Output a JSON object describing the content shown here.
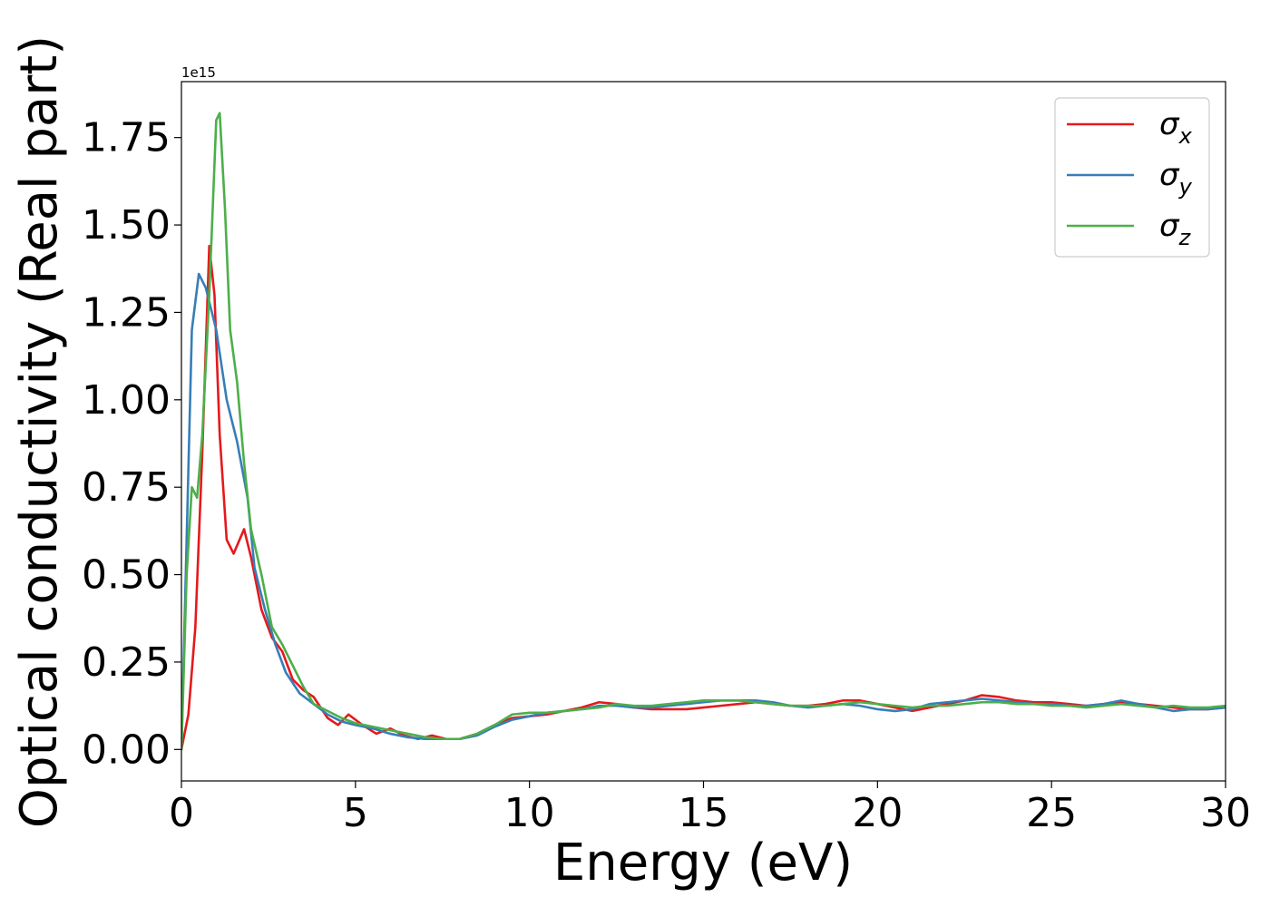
{
  "chart_data": {
    "type": "line",
    "xlabel": "Energy (eV)",
    "ylabel": "Optical conductivity (Real part)",
    "y_offset_label": "1e15",
    "xlim": [
      0,
      30
    ],
    "ylim": [
      -0.09,
      1.91
    ],
    "x_ticks": [
      0,
      5,
      10,
      15,
      20,
      25,
      30
    ],
    "y_ticks": [
      0.0,
      0.25,
      0.5,
      0.75,
      1.0,
      1.25,
      1.5,
      1.75
    ],
    "x_tick_labels": [
      "0",
      "5",
      "10",
      "15",
      "20",
      "25",
      "30"
    ],
    "y_tick_labels": [
      "0.00",
      "0.25",
      "0.50",
      "0.75",
      "1.00",
      "1.25",
      "1.50",
      "1.75"
    ],
    "grid": false,
    "legend_position": "top-right",
    "series": [
      {
        "name": "σx",
        "legend_base": "σ",
        "legend_sub": "x",
        "color": "#e41a1c",
        "points": [
          [
            0,
            0.0
          ],
          [
            0.2,
            0.1
          ],
          [
            0.4,
            0.35
          ],
          [
            0.6,
            0.85
          ],
          [
            0.8,
            1.44
          ],
          [
            0.95,
            1.3
          ],
          [
            1.1,
            0.9
          ],
          [
            1.3,
            0.6
          ],
          [
            1.5,
            0.56
          ],
          [
            1.8,
            0.63
          ],
          [
            2.0,
            0.55
          ],
          [
            2.3,
            0.4
          ],
          [
            2.6,
            0.32
          ],
          [
            2.9,
            0.28
          ],
          [
            3.2,
            0.2
          ],
          [
            3.5,
            0.17
          ],
          [
            3.8,
            0.15
          ],
          [
            4.2,
            0.09
          ],
          [
            4.5,
            0.07
          ],
          [
            4.8,
            0.1
          ],
          [
            5.2,
            0.07
          ],
          [
            5.6,
            0.045
          ],
          [
            6.0,
            0.06
          ],
          [
            6.4,
            0.04
          ],
          [
            6.8,
            0.03
          ],
          [
            7.2,
            0.04
          ],
          [
            7.6,
            0.03
          ],
          [
            8.0,
            0.03
          ],
          [
            8.5,
            0.045
          ],
          [
            9.0,
            0.07
          ],
          [
            9.5,
            0.09
          ],
          [
            10.0,
            0.095
          ],
          [
            10.5,
            0.1
          ],
          [
            11.0,
            0.11
          ],
          [
            11.5,
            0.12
          ],
          [
            12.0,
            0.135
          ],
          [
            12.5,
            0.13
          ],
          [
            13.0,
            0.12
          ],
          [
            13.5,
            0.115
          ],
          [
            14.0,
            0.115
          ],
          [
            14.5,
            0.115
          ],
          [
            15.0,
            0.12
          ],
          [
            15.5,
            0.125
          ],
          [
            16.0,
            0.13
          ],
          [
            16.5,
            0.135
          ],
          [
            17.0,
            0.13
          ],
          [
            17.5,
            0.125
          ],
          [
            18.0,
            0.125
          ],
          [
            18.5,
            0.13
          ],
          [
            19.0,
            0.14
          ],
          [
            19.5,
            0.14
          ],
          [
            20.0,
            0.13
          ],
          [
            20.5,
            0.12
          ],
          [
            21.0,
            0.11
          ],
          [
            21.5,
            0.12
          ],
          [
            22.0,
            0.13
          ],
          [
            22.5,
            0.14
          ],
          [
            23.0,
            0.155
          ],
          [
            23.5,
            0.15
          ],
          [
            24.0,
            0.14
          ],
          [
            24.5,
            0.135
          ],
          [
            25.0,
            0.135
          ],
          [
            25.5,
            0.13
          ],
          [
            26.0,
            0.125
          ],
          [
            26.5,
            0.13
          ],
          [
            27.0,
            0.135
          ],
          [
            27.5,
            0.13
          ],
          [
            28.0,
            0.125
          ],
          [
            28.5,
            0.12
          ],
          [
            29.0,
            0.115
          ],
          [
            29.5,
            0.115
          ],
          [
            30.0,
            0.12
          ]
        ]
      },
      {
        "name": "σy",
        "legend_base": "σ",
        "legend_sub": "y",
        "color": "#377eb8",
        "points": [
          [
            0,
            0.0
          ],
          [
            0.15,
            0.6
          ],
          [
            0.3,
            1.2
          ],
          [
            0.5,
            1.36
          ],
          [
            0.7,
            1.32
          ],
          [
            1.0,
            1.2
          ],
          [
            1.3,
            1.0
          ],
          [
            1.6,
            0.88
          ],
          [
            1.9,
            0.72
          ],
          [
            2.1,
            0.52
          ],
          [
            2.4,
            0.4
          ],
          [
            2.7,
            0.3
          ],
          [
            3.0,
            0.22
          ],
          [
            3.4,
            0.16
          ],
          [
            3.8,
            0.13
          ],
          [
            4.2,
            0.1
          ],
          [
            4.6,
            0.08
          ],
          [
            5.0,
            0.07
          ],
          [
            5.5,
            0.06
          ],
          [
            6.0,
            0.045
          ],
          [
            6.5,
            0.035
          ],
          [
            7.0,
            0.03
          ],
          [
            7.5,
            0.03
          ],
          [
            8.0,
            0.03
          ],
          [
            8.5,
            0.04
          ],
          [
            9.0,
            0.065
          ],
          [
            9.5,
            0.085
          ],
          [
            10.0,
            0.095
          ],
          [
            10.5,
            0.105
          ],
          [
            11.0,
            0.11
          ],
          [
            11.5,
            0.115
          ],
          [
            12.0,
            0.125
          ],
          [
            12.5,
            0.125
          ],
          [
            13.0,
            0.12
          ],
          [
            13.5,
            0.12
          ],
          [
            14.0,
            0.125
          ],
          [
            14.5,
            0.13
          ],
          [
            15.0,
            0.135
          ],
          [
            15.5,
            0.14
          ],
          [
            16.0,
            0.14
          ],
          [
            16.5,
            0.14
          ],
          [
            17.0,
            0.135
          ],
          [
            17.5,
            0.125
          ],
          [
            18.0,
            0.12
          ],
          [
            18.5,
            0.125
          ],
          [
            19.0,
            0.13
          ],
          [
            19.5,
            0.125
          ],
          [
            20.0,
            0.115
          ],
          [
            20.5,
            0.11
          ],
          [
            21.0,
            0.115
          ],
          [
            21.5,
            0.13
          ],
          [
            22.0,
            0.135
          ],
          [
            22.5,
            0.14
          ],
          [
            23.0,
            0.145
          ],
          [
            23.5,
            0.14
          ],
          [
            24.0,
            0.135
          ],
          [
            24.5,
            0.13
          ],
          [
            25.0,
            0.13
          ],
          [
            25.5,
            0.125
          ],
          [
            26.0,
            0.125
          ],
          [
            26.5,
            0.13
          ],
          [
            27.0,
            0.14
          ],
          [
            27.5,
            0.13
          ],
          [
            28.0,
            0.12
          ],
          [
            28.5,
            0.11
          ],
          [
            29.0,
            0.115
          ],
          [
            29.5,
            0.115
          ],
          [
            30.0,
            0.12
          ]
        ]
      },
      {
        "name": "σz",
        "legend_base": "σ",
        "legend_sub": "z",
        "color": "#4daf4a",
        "points": [
          [
            0,
            0.0
          ],
          [
            0.15,
            0.5
          ],
          [
            0.3,
            0.75
          ],
          [
            0.45,
            0.72
          ],
          [
            0.6,
            0.9
          ],
          [
            0.8,
            1.3
          ],
          [
            1.0,
            1.8
          ],
          [
            1.1,
            1.82
          ],
          [
            1.25,
            1.55
          ],
          [
            1.4,
            1.2
          ],
          [
            1.6,
            1.05
          ],
          [
            1.8,
            0.82
          ],
          [
            2.0,
            0.63
          ],
          [
            2.3,
            0.5
          ],
          [
            2.6,
            0.35
          ],
          [
            2.9,
            0.3
          ],
          [
            3.2,
            0.24
          ],
          [
            3.5,
            0.18
          ],
          [
            3.8,
            0.13
          ],
          [
            4.2,
            0.11
          ],
          [
            4.6,
            0.09
          ],
          [
            5.0,
            0.075
          ],
          [
            5.5,
            0.065
          ],
          [
            6.0,
            0.055
          ],
          [
            6.5,
            0.045
          ],
          [
            7.0,
            0.035
          ],
          [
            7.5,
            0.03
          ],
          [
            8.0,
            0.03
          ],
          [
            8.5,
            0.045
          ],
          [
            9.0,
            0.07
          ],
          [
            9.5,
            0.1
          ],
          [
            10.0,
            0.105
          ],
          [
            10.5,
            0.105
          ],
          [
            11.0,
            0.11
          ],
          [
            11.5,
            0.115
          ],
          [
            12.0,
            0.12
          ],
          [
            12.5,
            0.13
          ],
          [
            13.0,
            0.125
          ],
          [
            13.5,
            0.125
          ],
          [
            14.0,
            0.13
          ],
          [
            14.5,
            0.135
          ],
          [
            15.0,
            0.14
          ],
          [
            15.5,
            0.14
          ],
          [
            16.0,
            0.14
          ],
          [
            16.5,
            0.135
          ],
          [
            17.0,
            0.13
          ],
          [
            17.5,
            0.125
          ],
          [
            18.0,
            0.125
          ],
          [
            18.5,
            0.125
          ],
          [
            19.0,
            0.13
          ],
          [
            19.5,
            0.135
          ],
          [
            20.0,
            0.13
          ],
          [
            20.5,
            0.125
          ],
          [
            21.0,
            0.12
          ],
          [
            21.5,
            0.125
          ],
          [
            22.0,
            0.125
          ],
          [
            22.5,
            0.13
          ],
          [
            23.0,
            0.135
          ],
          [
            23.5,
            0.135
          ],
          [
            24.0,
            0.13
          ],
          [
            24.5,
            0.13
          ],
          [
            25.0,
            0.125
          ],
          [
            25.5,
            0.125
          ],
          [
            26.0,
            0.12
          ],
          [
            26.5,
            0.125
          ],
          [
            27.0,
            0.13
          ],
          [
            27.5,
            0.125
          ],
          [
            28.0,
            0.12
          ],
          [
            28.5,
            0.125
          ],
          [
            29.0,
            0.12
          ],
          [
            29.5,
            0.12
          ],
          [
            30.0,
            0.125
          ]
        ]
      }
    ]
  }
}
